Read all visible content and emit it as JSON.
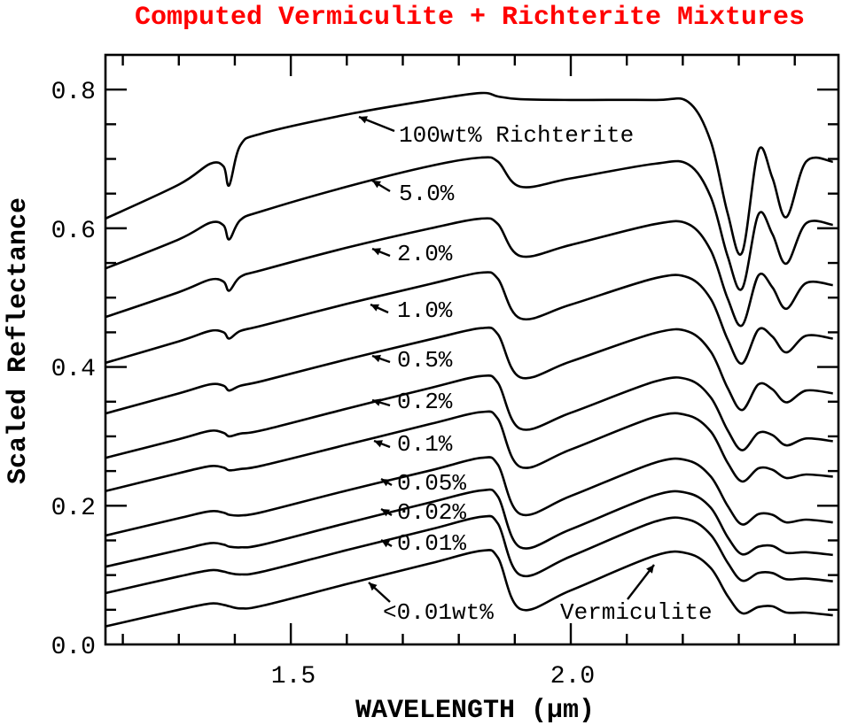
{
  "chart_data": {
    "type": "line",
    "title": "Computed Vermiculite + Richterite Mixtures",
    "title_color": "#ff0000",
    "xlabel": "WAVELENGTH (µm)",
    "ylabel": "Scaled Reflectance",
    "xlim": [
      1.169,
      2.478
    ],
    "ylim": [
      0.0,
      0.85
    ],
    "x_ticks": [
      {
        "value": 1.5,
        "label": "1.5"
      },
      {
        "value": 2.0,
        "label": "2.0"
      }
    ],
    "x_minor_step": 0.1,
    "y_ticks": [
      {
        "value": 0.0,
        "label": "0.0"
      },
      {
        "value": 0.2,
        "label": "0.2"
      },
      {
        "value": 0.4,
        "label": "0.4"
      },
      {
        "value": 0.6,
        "label": "0.6"
      },
      {
        "value": 0.8,
        "label": "0.8"
      }
    ],
    "y_minor_step": 0.05,
    "grid": false,
    "legend": "none (inline annotations)",
    "x": [
      1.169,
      1.3,
      1.356,
      1.38,
      1.39,
      1.41,
      1.45,
      1.6,
      1.75,
      1.84,
      1.87,
      1.91,
      2.0,
      2.15,
      2.21,
      2.25,
      2.28,
      2.306,
      2.335,
      2.36,
      2.385,
      2.42,
      2.468
    ],
    "series": [
      {
        "name": "100wt% Richterite",
        "values": [
          0.614,
          0.663,
          0.693,
          0.689,
          0.662,
          0.72,
          0.737,
          0.764,
          0.785,
          0.795,
          0.79,
          0.786,
          0.785,
          0.785,
          0.782,
          0.725,
          0.622,
          0.565,
          0.712,
          0.673,
          0.616,
          0.696,
          0.696
        ]
      },
      {
        "name": "5.0%",
        "values": [
          0.542,
          0.584,
          0.608,
          0.604,
          0.584,
          0.612,
          0.625,
          0.66,
          0.69,
          0.702,
          0.696,
          0.66,
          0.672,
          0.693,
          0.692,
          0.645,
          0.56,
          0.513,
          0.62,
          0.592,
          0.549,
          0.607,
          0.605
        ]
      },
      {
        "name": "2.0%",
        "values": [
          0.472,
          0.508,
          0.526,
          0.523,
          0.51,
          0.53,
          0.54,
          0.572,
          0.6,
          0.614,
          0.606,
          0.56,
          0.576,
          0.606,
          0.606,
          0.568,
          0.499,
          0.46,
          0.532,
          0.515,
          0.484,
          0.521,
          0.518
        ]
      },
      {
        "name": "1.0%",
        "values": [
          0.406,
          0.437,
          0.452,
          0.45,
          0.441,
          0.452,
          0.46,
          0.491,
          0.52,
          0.536,
          0.527,
          0.47,
          0.49,
          0.528,
          0.529,
          0.498,
          0.44,
          0.405,
          0.454,
          0.444,
          0.421,
          0.445,
          0.441
        ]
      },
      {
        "name": "0.5%",
        "values": [
          0.333,
          0.362,
          0.375,
          0.373,
          0.366,
          0.373,
          0.38,
          0.411,
          0.44,
          0.456,
          0.447,
          0.385,
          0.408,
          0.449,
          0.451,
          0.422,
          0.37,
          0.338,
          0.375,
          0.368,
          0.349,
          0.366,
          0.362
        ]
      },
      {
        "name": "0.2%",
        "values": [
          0.269,
          0.296,
          0.308,
          0.305,
          0.3,
          0.304,
          0.309,
          0.34,
          0.37,
          0.387,
          0.377,
          0.311,
          0.334,
          0.379,
          0.382,
          0.356,
          0.309,
          0.28,
          0.305,
          0.302,
          0.287,
          0.297,
          0.293
        ]
      },
      {
        "name": "0.1%",
        "values": [
          0.221,
          0.247,
          0.257,
          0.255,
          0.251,
          0.253,
          0.258,
          0.288,
          0.318,
          0.335,
          0.325,
          0.256,
          0.281,
          0.328,
          0.33,
          0.307,
          0.262,
          0.235,
          0.254,
          0.252,
          0.24,
          0.245,
          0.242
        ]
      },
      {
        "name": "0.05%",
        "values": [
          0.157,
          0.182,
          0.192,
          0.19,
          0.187,
          0.186,
          0.191,
          0.222,
          0.251,
          0.269,
          0.259,
          0.188,
          0.214,
          0.262,
          0.265,
          0.242,
          0.2,
          0.173,
          0.188,
          0.187,
          0.176,
          0.18,
          0.176
        ]
      },
      {
        "name": "0.02%",
        "values": [
          0.112,
          0.136,
          0.146,
          0.144,
          0.141,
          0.14,
          0.144,
          0.175,
          0.205,
          0.222,
          0.213,
          0.14,
          0.166,
          0.215,
          0.218,
          0.197,
          0.155,
          0.13,
          0.141,
          0.142,
          0.132,
          0.133,
          0.129
        ]
      },
      {
        "name": "0.01%",
        "values": [
          0.074,
          0.098,
          0.107,
          0.105,
          0.103,
          0.101,
          0.105,
          0.136,
          0.166,
          0.184,
          0.174,
          0.1,
          0.127,
          0.177,
          0.18,
          0.158,
          0.118,
          0.092,
          0.103,
          0.103,
          0.094,
          0.095,
          0.091
        ]
      },
      {
        "name": "<0.01wt% / Vermiculite",
        "values": [
          0.026,
          0.05,
          0.059,
          0.057,
          0.055,
          0.052,
          0.056,
          0.087,
          0.117,
          0.135,
          0.125,
          0.051,
          0.078,
          0.128,
          0.131,
          0.11,
          0.07,
          0.045,
          0.054,
          0.055,
          0.046,
          0.046,
          0.042
        ]
      }
    ],
    "annotations": [
      "100wt% Richterite",
      "5.0%",
      "2.0%",
      "1.0%",
      "0.5%",
      "0.2%",
      "0.1%",
      "0.05%",
      "0.02%",
      "0.01%",
      "<0.01wt%",
      "Vermiculite"
    ]
  }
}
